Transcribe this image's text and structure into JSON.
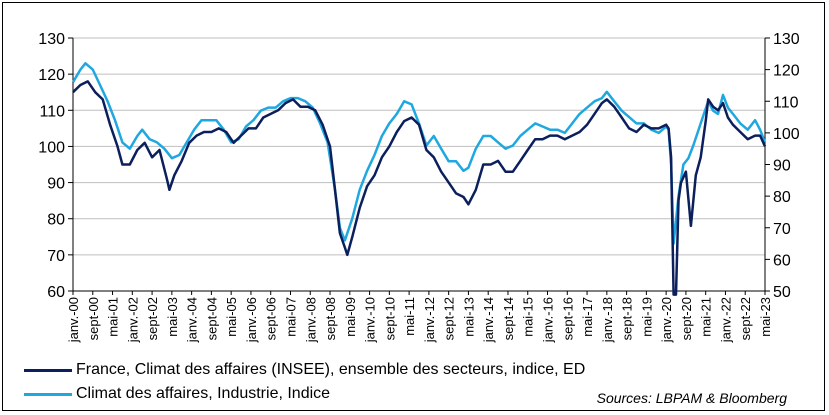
{
  "chart_data": {
    "type": "line",
    "source": "Sources: LBPAM & Bloomberg",
    "y_left": {
      "min": 60,
      "max": 130,
      "ticks": [
        60,
        70,
        80,
        90,
        100,
        110,
        120,
        130
      ]
    },
    "y_right": {
      "min": 50,
      "max": 130,
      "ticks": [
        50,
        60,
        70,
        80,
        90,
        100,
        110,
        120,
        130
      ]
    },
    "x": {
      "start": "2000-01",
      "end": "2023-05"
    },
    "x_tick_labels": [
      "janv.-00",
      "sept-00",
      "mai-01",
      "janv.-02",
      "sept-02",
      "mai-03",
      "janv.-04",
      "sept-04",
      "mai-05",
      "janv.-06",
      "sept-06",
      "mai-07",
      "janv.-08",
      "sept-08",
      "mai-09",
      "janv.-10",
      "sept-10",
      "mai-11",
      "janv.-12",
      "sept-12",
      "mai-13",
      "janv.-14",
      "sept-14",
      "mai-15",
      "janv.-16",
      "sept-16",
      "mai-17",
      "janv.-18",
      "sept-18",
      "mai-19",
      "janv.-20",
      "sept-20",
      "mai-21",
      "janv.-22",
      "sept-22",
      "mai-23"
    ],
    "grid": "horizontal",
    "series": [
      {
        "name": "France, Climat des affaires (INSEE), ensemble des secteurs, indice, ED",
        "axis": "left",
        "color": "#0b1f5c",
        "points": [
          [
            "2000-01",
            115
          ],
          [
            "2000-04",
            117
          ],
          [
            "2000-07",
            118
          ],
          [
            "2000-10",
            115
          ],
          [
            "2001-01",
            113
          ],
          [
            "2001-04",
            106
          ],
          [
            "2001-07",
            100
          ],
          [
            "2001-09",
            95
          ],
          [
            "2001-12",
            95
          ],
          [
            "2002-03",
            99
          ],
          [
            "2002-06",
            101
          ],
          [
            "2002-09",
            97
          ],
          [
            "2002-12",
            99
          ],
          [
            "2003-03",
            91
          ],
          [
            "2003-04",
            88
          ],
          [
            "2003-06",
            92
          ],
          [
            "2003-09",
            96
          ],
          [
            "2003-12",
            101
          ],
          [
            "2004-03",
            103
          ],
          [
            "2004-06",
            104
          ],
          [
            "2004-09",
            104
          ],
          [
            "2004-12",
            105
          ],
          [
            "2005-03",
            104
          ],
          [
            "2005-06",
            101
          ],
          [
            "2005-09",
            103
          ],
          [
            "2005-12",
            105
          ],
          [
            "2006-03",
            105
          ],
          [
            "2006-06",
            108
          ],
          [
            "2006-09",
            109
          ],
          [
            "2006-12",
            110
          ],
          [
            "2007-03",
            112
          ],
          [
            "2007-06",
            113
          ],
          [
            "2007-09",
            111
          ],
          [
            "2007-12",
            111
          ],
          [
            "2008-03",
            110
          ],
          [
            "2008-06",
            106
          ],
          [
            "2008-09",
            100
          ],
          [
            "2008-11",
            88
          ],
          [
            "2009-01",
            76
          ],
          [
            "2009-03",
            72
          ],
          [
            "2009-04",
            70
          ],
          [
            "2009-06",
            75
          ],
          [
            "2009-09",
            83
          ],
          [
            "2009-12",
            89
          ],
          [
            "2010-03",
            92
          ],
          [
            "2010-06",
            97
          ],
          [
            "2010-09",
            100
          ],
          [
            "2010-12",
            104
          ],
          [
            "2011-03",
            107
          ],
          [
            "2011-06",
            108
          ],
          [
            "2011-09",
            106
          ],
          [
            "2011-12",
            99
          ],
          [
            "2012-03",
            97
          ],
          [
            "2012-06",
            93
          ],
          [
            "2012-09",
            90
          ],
          [
            "2012-12",
            87
          ],
          [
            "2013-03",
            86
          ],
          [
            "2013-05",
            84
          ],
          [
            "2013-08",
            88
          ],
          [
            "2013-11",
            95
          ],
          [
            "2014-02",
            95
          ],
          [
            "2014-05",
            96
          ],
          [
            "2014-08",
            93
          ],
          [
            "2014-11",
            93
          ],
          [
            "2015-02",
            96
          ],
          [
            "2015-05",
            99
          ],
          [
            "2015-08",
            102
          ],
          [
            "2015-11",
            102
          ],
          [
            "2016-02",
            103
          ],
          [
            "2016-05",
            103
          ],
          [
            "2016-08",
            102
          ],
          [
            "2016-11",
            103
          ],
          [
            "2017-02",
            104
          ],
          [
            "2017-05",
            106
          ],
          [
            "2017-08",
            109
          ],
          [
            "2017-11",
            112
          ],
          [
            "2018-01",
            113
          ],
          [
            "2018-04",
            111
          ],
          [
            "2018-07",
            108
          ],
          [
            "2018-10",
            105
          ],
          [
            "2019-01",
            104
          ],
          [
            "2019-04",
            106
          ],
          [
            "2019-07",
            105
          ],
          [
            "2019-10",
            105
          ],
          [
            "2020-01",
            106
          ],
          [
            "2020-02",
            105
          ],
          [
            "2020-03",
            97
          ],
          [
            "2020-04",
            59
          ],
          [
            "2020-05",
            59
          ],
          [
            "2020-06",
            85
          ],
          [
            "2020-07",
            90
          ],
          [
            "2020-09",
            93
          ],
          [
            "2020-11",
            78
          ],
          [
            "2021-01",
            92
          ],
          [
            "2021-03",
            97
          ],
          [
            "2021-05",
            107
          ],
          [
            "2021-06",
            113
          ],
          [
            "2021-08",
            111
          ],
          [
            "2021-10",
            110
          ],
          [
            "2021-12",
            112
          ],
          [
            "2022-02",
            108
          ],
          [
            "2022-04",
            106
          ],
          [
            "2022-07",
            104
          ],
          [
            "2022-10",
            102
          ],
          [
            "2023-01",
            103
          ],
          [
            "2023-03",
            103
          ],
          [
            "2023-05",
            100
          ]
        ]
      },
      {
        "name": "Climat des affaires, Industrie, Indice",
        "axis": "right",
        "color": "#1fa8e0",
        "points": [
          [
            "2000-01",
            116
          ],
          [
            "2000-04",
            120
          ],
          [
            "2000-06",
            122
          ],
          [
            "2000-09",
            120
          ],
          [
            "2000-12",
            115
          ],
          [
            "2001-03",
            110
          ],
          [
            "2001-06",
            104
          ],
          [
            "2001-09",
            97
          ],
          [
            "2001-12",
            95
          ],
          [
            "2002-03",
            99
          ],
          [
            "2002-05",
            101
          ],
          [
            "2002-08",
            98
          ],
          [
            "2002-11",
            97
          ],
          [
            "2003-02",
            95
          ],
          [
            "2003-05",
            92
          ],
          [
            "2003-08",
            93
          ],
          [
            "2003-11",
            97
          ],
          [
            "2004-02",
            101
          ],
          [
            "2004-05",
            104
          ],
          [
            "2004-08",
            104
          ],
          [
            "2004-11",
            104
          ],
          [
            "2005-02",
            101
          ],
          [
            "2005-05",
            97
          ],
          [
            "2005-08",
            98
          ],
          [
            "2005-11",
            102
          ],
          [
            "2006-02",
            104
          ],
          [
            "2006-05",
            107
          ],
          [
            "2006-08",
            108
          ],
          [
            "2006-11",
            108
          ],
          [
            "2007-02",
            110
          ],
          [
            "2007-05",
            111
          ],
          [
            "2007-08",
            111
          ],
          [
            "2007-11",
            110
          ],
          [
            "2008-02",
            108
          ],
          [
            "2008-05",
            103
          ],
          [
            "2008-08",
            97
          ],
          [
            "2008-11",
            82
          ],
          [
            "2009-01",
            70
          ],
          [
            "2009-03",
            66
          ],
          [
            "2009-06",
            73
          ],
          [
            "2009-09",
            82
          ],
          [
            "2009-12",
            88
          ],
          [
            "2010-03",
            93
          ],
          [
            "2010-06",
            99
          ],
          [
            "2010-09",
            103
          ],
          [
            "2010-12",
            106
          ],
          [
            "2011-03",
            110
          ],
          [
            "2011-06",
            109
          ],
          [
            "2011-09",
            103
          ],
          [
            "2011-12",
            96
          ],
          [
            "2012-03",
            99
          ],
          [
            "2012-06",
            95
          ],
          [
            "2012-09",
            91
          ],
          [
            "2012-12",
            91
          ],
          [
            "2013-03",
            88
          ],
          [
            "2013-05",
            89
          ],
          [
            "2013-08",
            95
          ],
          [
            "2013-11",
            99
          ],
          [
            "2014-02",
            99
          ],
          [
            "2014-05",
            97
          ],
          [
            "2014-08",
            95
          ],
          [
            "2014-11",
            96
          ],
          [
            "2015-02",
            99
          ],
          [
            "2015-05",
            101
          ],
          [
            "2015-08",
            103
          ],
          [
            "2015-11",
            102
          ],
          [
            "2016-02",
            101
          ],
          [
            "2016-05",
            101
          ],
          [
            "2016-08",
            100
          ],
          [
            "2016-11",
            103
          ],
          [
            "2017-02",
            106
          ],
          [
            "2017-05",
            108
          ],
          [
            "2017-08",
            110
          ],
          [
            "2017-11",
            111
          ],
          [
            "2018-01",
            113
          ],
          [
            "2018-04",
            110
          ],
          [
            "2018-07",
            107
          ],
          [
            "2018-10",
            105
          ],
          [
            "2019-01",
            103
          ],
          [
            "2019-04",
            103
          ],
          [
            "2019-07",
            101
          ],
          [
            "2019-10",
            100
          ],
          [
            "2020-01",
            102
          ],
          [
            "2020-02",
            101
          ],
          [
            "2020-03",
            90
          ],
          [
            "2020-04",
            65
          ],
          [
            "2020-06",
            80
          ],
          [
            "2020-08",
            90
          ],
          [
            "2020-10",
            92
          ],
          [
            "2020-12",
            96
          ],
          [
            "2021-03",
            103
          ],
          [
            "2021-06",
            110
          ],
          [
            "2021-08",
            107
          ],
          [
            "2021-10",
            106
          ],
          [
            "2021-12",
            112
          ],
          [
            "2022-02",
            108
          ],
          [
            "2022-04",
            106
          ],
          [
            "2022-07",
            103
          ],
          [
            "2022-10",
            101
          ],
          [
            "2023-01",
            104
          ],
          [
            "2023-03",
            101
          ],
          [
            "2023-05",
            97
          ]
        ]
      }
    ]
  }
}
